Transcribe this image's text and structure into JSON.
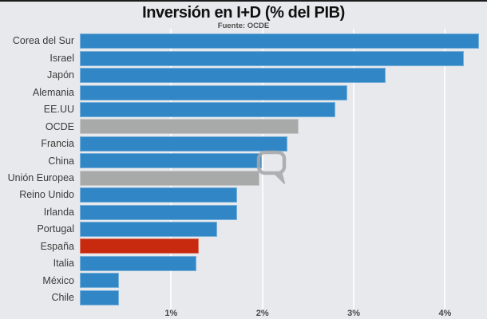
{
  "page": {
    "kind": "embedded-chart",
    "background": "#e8e9ec"
  },
  "chart_data": {
    "type": "bar",
    "orientation": "horizontal",
    "title": "Inversión en I+D (% del PIB)",
    "subtitle": "Fuente: OCDE",
    "xlabel": "",
    "ylabel": "",
    "unit": "% del PIB",
    "grid": "vertical-white-lines",
    "legend": "none",
    "xlim": [
      0,
      4.46
    ],
    "categories": [
      "Corea del Sur",
      "Israel",
      "Japón",
      "Alemania",
      "EE.UU",
      "OCDE",
      "Francia",
      "China",
      "Unión Europea",
      "Reino Unido",
      "Irlanda",
      "Portugal",
      "España",
      "Italia",
      "México",
      "Chile"
    ],
    "values": [
      4.37,
      4.21,
      3.35,
      2.93,
      2.8,
      2.4,
      2.27,
      1.99,
      1.97,
      1.72,
      1.72,
      1.5,
      1.3,
      1.28,
      0.43,
      0.43
    ],
    "bar_roles": [
      "default",
      "default",
      "default",
      "default",
      "default",
      "neutral",
      "default",
      "default",
      "neutral",
      "default",
      "default",
      "default",
      "highlight",
      "default",
      "default",
      "default"
    ],
    "x_ticks": [
      {
        "value": 1,
        "label": "1%"
      },
      {
        "value": 2,
        "label": "2%"
      },
      {
        "value": 3,
        "label": "3%"
      },
      {
        "value": 4,
        "label": "4%"
      }
    ]
  },
  "colors": {
    "bar_default": "#3186c6",
    "bar_neutral": "#a8aaa9",
    "bar_highlight": "#c82a0f",
    "background": "#e8e9ec",
    "gridline": "#fbfbfc",
    "top_border": "#1b1b1b",
    "watermark": "#a6a9ab"
  },
  "watermark": {
    "icon": "speech-bubble-logo"
  }
}
